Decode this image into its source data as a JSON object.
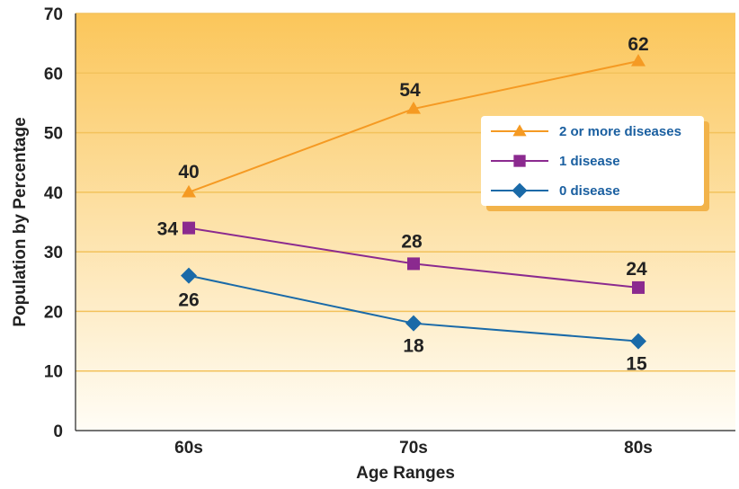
{
  "chart_data": {
    "type": "line",
    "title": "",
    "xlabel": "Age Ranges",
    "ylabel": "Population by Percentage",
    "categories": [
      "60s",
      "70s",
      "80s"
    ],
    "y_ticks": [
      "0",
      "10",
      "20",
      "30",
      "40",
      "50",
      "60",
      "70"
    ],
    "ylim": [
      0,
      70
    ],
    "grid": "horizontal",
    "legend_position": "right",
    "series": [
      {
        "name": "2 or more diseases",
        "values": [
          40,
          54,
          62
        ],
        "labels": [
          "40",
          "54",
          "62"
        ],
        "color": "#f59a23",
        "marker": "triangle",
        "legend_color": "#1a5fa0"
      },
      {
        "name": "1 disease",
        "values": [
          34,
          28,
          24
        ],
        "labels": [
          "34",
          "28",
          "24"
        ],
        "color": "#8b2a8f",
        "marker": "square",
        "legend_color": "#1a5fa0"
      },
      {
        "name": "0 disease",
        "values": [
          26,
          18,
          15
        ],
        "labels": [
          "26",
          "18",
          "15"
        ],
        "color": "#1a6aa8",
        "marker": "diamond",
        "legend_color": "#1a5fa0"
      }
    ]
  }
}
